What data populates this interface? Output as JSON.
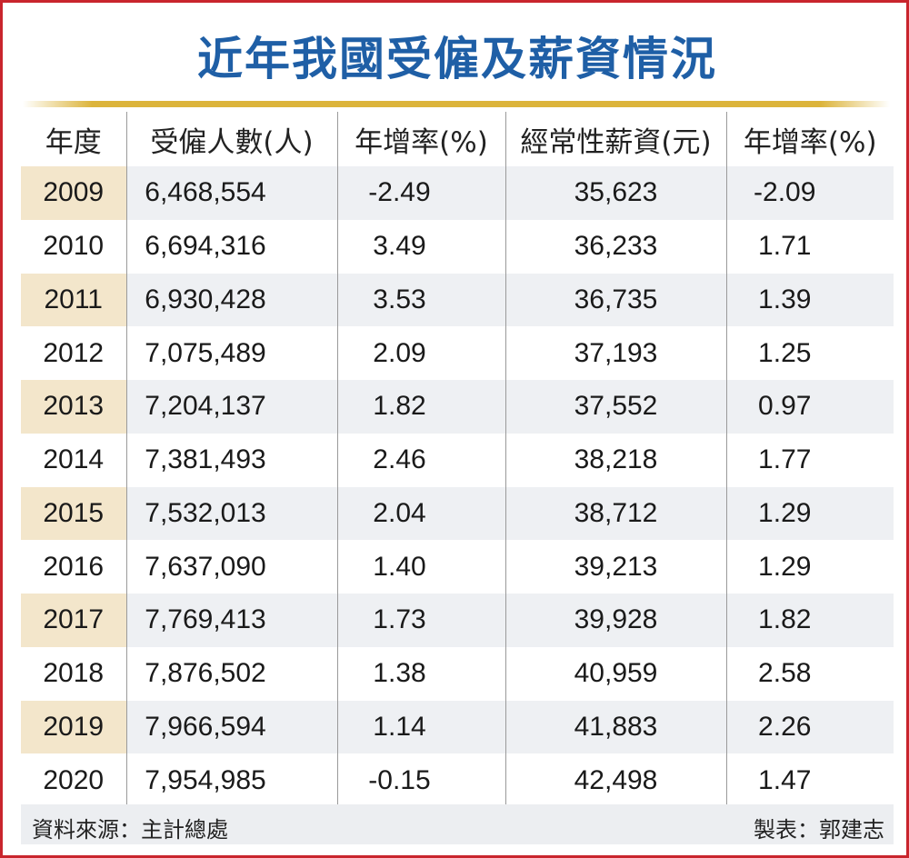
{
  "title": "近年我國受僱及薪資情況",
  "headers": [
    "年度",
    "受僱人數(人)",
    "年增率(%)",
    "經常性薪資(元)",
    "年增率(%)"
  ],
  "rows": [
    {
      "year": "2009",
      "employees": "6,468,554",
      "emp_growth": "-2.49",
      "wage": "35,623",
      "wage_growth": "-2.09"
    },
    {
      "year": "2010",
      "employees": "6,694,316",
      "emp_growth": "3.49",
      "wage": "36,233",
      "wage_growth": "1.71"
    },
    {
      "year": "2011",
      "employees": "6,930,428",
      "emp_growth": "3.53",
      "wage": "36,735",
      "wage_growth": "1.39"
    },
    {
      "year": "2012",
      "employees": "7,075,489",
      "emp_growth": "2.09",
      "wage": "37,193",
      "wage_growth": "1.25"
    },
    {
      "year": "2013",
      "employees": "7,204,137",
      "emp_growth": "1.82",
      "wage": "37,552",
      "wage_growth": "0.97"
    },
    {
      "year": "2014",
      "employees": "7,381,493",
      "emp_growth": "2.46",
      "wage": "38,218",
      "wage_growth": "1.77"
    },
    {
      "year": "2015",
      "employees": "7,532,013",
      "emp_growth": "2.04",
      "wage": "38,712",
      "wage_growth": "1.29"
    },
    {
      "year": "2016",
      "employees": "7,637,090",
      "emp_growth": "1.40",
      "wage": "39,213",
      "wage_growth": "1.29"
    },
    {
      "year": "2017",
      "employees": "7,769,413",
      "emp_growth": "1.73",
      "wage": "39,928",
      "wage_growth": "1.82"
    },
    {
      "year": "2018",
      "employees": "7,876,502",
      "emp_growth": "1.38",
      "wage": "40,959",
      "wage_growth": "2.58"
    },
    {
      "year": "2019",
      "employees": "7,966,594",
      "emp_growth": "1.14",
      "wage": "41,883",
      "wage_growth": "2.26"
    },
    {
      "year": "2020",
      "employees": "7,954,985",
      "emp_growth": "-0.15",
      "wage": "42,498",
      "wage_growth": "1.47"
    }
  ],
  "footer": {
    "source": "資料來源：主計總處",
    "maker": "製表：郭建志"
  },
  "colors": {
    "border": "#c9252d",
    "title": "#1f5fa6",
    "gold_rule": "#dcb43b",
    "year_band": "#f3e6cb",
    "row_band": "#eef0f3"
  }
}
